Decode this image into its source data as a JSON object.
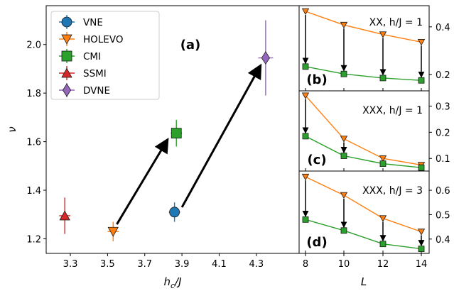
{
  "colors": {
    "VNE": "#1f77b4",
    "HOLEVO": "#ff7f0e",
    "CMI": "#2ca02c",
    "SSMI": "#d62728",
    "DVNE": "#9467bd"
  },
  "chart_data": [
    {
      "type": "scatter",
      "panel": "(a)",
      "xlabel": "h_c/J",
      "ylabel": "ν",
      "xlim": [
        3.17,
        4.53
      ],
      "ylim": [
        1.14,
        2.16
      ],
      "xticks": [
        "3.3",
        "3.5",
        "3.7",
        "3.9",
        "4.1",
        "4.3"
      ],
      "yticks": [
        "1.2",
        "1.4",
        "1.6",
        "1.8",
        "2.0"
      ],
      "legend": [
        "VNE",
        "HOLEVO",
        "CMI",
        "SSMI",
        "DVNE"
      ],
      "legend_position": "top-left",
      "series": [
        {
          "name": "VNE",
          "marker": "circle",
          "x": 3.86,
          "y": 1.31,
          "xerr": 0.03,
          "yerr": 0.04
        },
        {
          "name": "HOLEVO",
          "marker": "triangle-down",
          "x": 3.53,
          "y": 1.23,
          "xerr": 0.03,
          "yerr": 0.04
        },
        {
          "name": "CMI",
          "marker": "square",
          "x": 3.87,
          "y": 1.635,
          "xerr": 0.03,
          "yerr": 0.055
        },
        {
          "name": "SSMI",
          "marker": "triangle-up",
          "x": 3.27,
          "y": 1.295,
          "xerr": 0.03,
          "yerr": 0.075
        },
        {
          "name": "DVNE",
          "marker": "diamond",
          "x": 4.35,
          "y": 1.945,
          "xerr": 0.04,
          "yerr": 0.155
        }
      ],
      "arrows": [
        {
          "from": [
            3.55,
            1.26
          ],
          "to": [
            3.82,
            1.605
          ]
        },
        {
          "from": [
            3.9,
            1.33
          ],
          "to": [
            4.32,
            1.91
          ]
        }
      ]
    },
    {
      "type": "line",
      "panel": "(b)",
      "annotation": "XX, h/J = 1",
      "x": [
        8,
        10,
        12,
        14
      ],
      "ylim": [
        0.14,
        0.48
      ],
      "yticks": [
        "0.2",
        "0.4"
      ],
      "series": [
        {
          "name": "HOLEVO",
          "values": [
            0.465,
            0.408,
            0.368,
            0.336
          ]
        },
        {
          "name": "CMI",
          "values": [
            0.233,
            0.202,
            0.185,
            0.175
          ]
        }
      ]
    },
    {
      "type": "line",
      "panel": "(c)",
      "annotation": "XXX, h/J = 1",
      "x": [
        8,
        10,
        12,
        14
      ],
      "ylim": [
        0.06,
        0.35
      ],
      "yticks": [
        "0.1",
        "0.2",
        "0.3"
      ],
      "series": [
        {
          "name": "HOLEVO",
          "values": [
            0.34,
            0.175,
            0.1,
            0.075
          ]
        },
        {
          "name": "CMI",
          "values": [
            0.185,
            0.11,
            0.08,
            0.065
          ]
        }
      ]
    },
    {
      "type": "line",
      "panel": "(d)",
      "annotation": "XXX, h/J = 3",
      "x": [
        8,
        10,
        12,
        14
      ],
      "xlabel": "L",
      "xticks": [
        "8",
        "10",
        "12",
        "14"
      ],
      "ylim": [
        0.35,
        0.67
      ],
      "yticks": [
        "0.4",
        "0.5",
        "0.6"
      ],
      "series": [
        {
          "name": "HOLEVO",
          "values": [
            0.655,
            0.58,
            0.485,
            0.43
          ]
        },
        {
          "name": "CMI",
          "values": [
            0.48,
            0.435,
            0.38,
            0.36
          ]
        }
      ]
    }
  ]
}
